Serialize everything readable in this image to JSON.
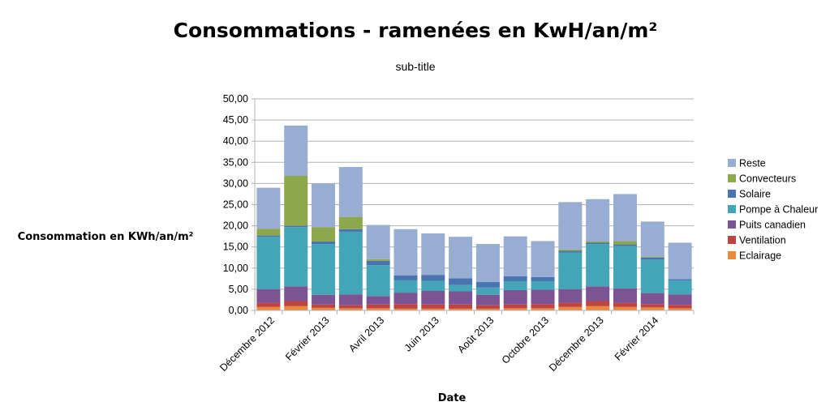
{
  "chart_data": {
    "type": "bar",
    "stacked": true,
    "title": "Consommations - ramenées en KwH/an/m²",
    "subtitle": "sub-title",
    "xlabel": "Date",
    "ylabel": "Consommation en KWh/an/m²",
    "ylim": [
      0,
      50
    ],
    "ytick_step": 5,
    "ytick_labels": [
      "0,00",
      "5,00",
      "10,00",
      "15,00",
      "20,00",
      "25,00",
      "30,00",
      "35,00",
      "40,00",
      "45,00",
      "50,00"
    ],
    "grid": true,
    "legend_position": "right",
    "categories": [
      "Décembre 2012",
      "Janvier 2013",
      "Février 2013",
      "Mars 2013",
      "Avril 2013",
      "Mai 2013",
      "Juin 2013",
      "Juillet 2013",
      "Août 2013",
      "Septembre 2013",
      "Octobre 2013",
      "Novembre 2013",
      "Décembre 2013",
      "Janvier 2014",
      "Février 2014",
      "Mars 2014"
    ],
    "visible_x_labels": [
      {
        "index": 0,
        "label": "Décembre 2012"
      },
      {
        "index": 2,
        "label": "Février 2013"
      },
      {
        "index": 4,
        "label": "Avril 2013"
      },
      {
        "index": 6,
        "label": "Juin 2013"
      },
      {
        "index": 8,
        "label": "Août 2013"
      },
      {
        "index": 10,
        "label": "Octobre 2013"
      },
      {
        "index": 12,
        "label": "Décembre 2013"
      },
      {
        "index": 14,
        "label": "Février 2014"
      }
    ],
    "series": [
      {
        "name": "Eclairage",
        "color": "#e8893c",
        "values": [
          0.8,
          1.0,
          0.6,
          0.5,
          0.5,
          0.4,
          0.4,
          0.4,
          0.4,
          0.5,
          0.5,
          0.8,
          1.0,
          0.8,
          0.7,
          0.5
        ]
      },
      {
        "name": "Ventilation",
        "color": "#c0433f",
        "values": [
          1.0,
          1.2,
          0.8,
          0.7,
          0.9,
          1.1,
          1.0,
          1.0,
          0.8,
          0.9,
          1.0,
          1.0,
          1.2,
          1.0,
          0.8,
          0.8
        ]
      },
      {
        "name": "Puits canadien",
        "color": "#7d5493",
        "values": [
          3.2,
          3.5,
          2.3,
          2.6,
          2.0,
          2.7,
          3.2,
          3.1,
          2.5,
          3.4,
          3.4,
          3.2,
          3.5,
          3.4,
          2.6,
          2.5
        ]
      },
      {
        "name": "Pompe à Chaleur",
        "color": "#45a5b8",
        "values": [
          12.4,
          14.0,
          12.0,
          14.8,
          7.3,
          2.9,
          2.4,
          1.5,
          1.7,
          2.1,
          2.0,
          8.7,
          10.0,
          10.0,
          7.9,
          3.3
        ]
      },
      {
        "name": "Solaire",
        "color": "#4a74b0",
        "values": [
          0.3,
          0.3,
          0.6,
          0.6,
          1.0,
          1.2,
          1.4,
          1.6,
          1.3,
          1.2,
          1.0,
          0.4,
          0.3,
          0.4,
          0.5,
          0.3
        ]
      },
      {
        "name": "Convecteurs",
        "color": "#8ca84a",
        "values": [
          1.6,
          11.8,
          3.4,
          2.9,
          0.4,
          0.0,
          0.0,
          0.0,
          0.0,
          0.0,
          0.0,
          0.3,
          0.3,
          0.8,
          0.2,
          0.0
        ]
      },
      {
        "name": "Reste",
        "color": "#98add2",
        "values": [
          9.7,
          11.9,
          10.3,
          11.8,
          8.1,
          10.9,
          9.8,
          9.8,
          9.0,
          9.4,
          8.5,
          11.2,
          10.0,
          11.1,
          8.3,
          8.6
        ]
      }
    ]
  }
}
